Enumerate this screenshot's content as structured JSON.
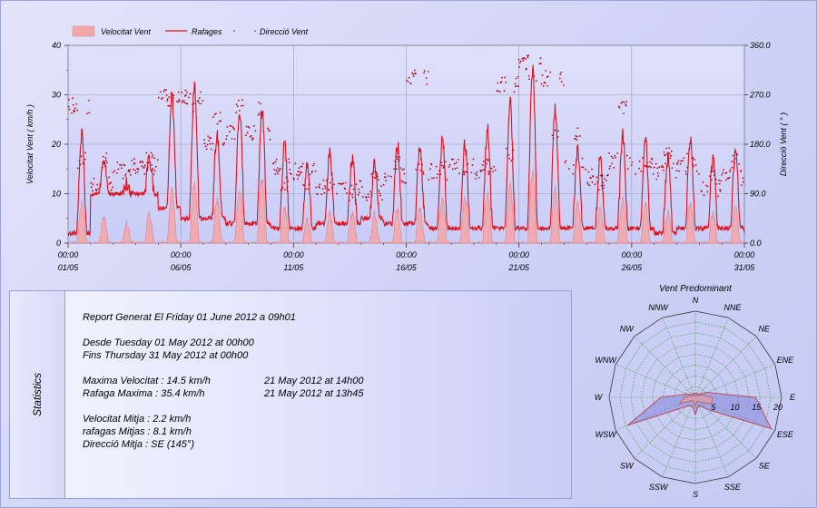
{
  "chart_data": [
    {
      "type": "line",
      "legend": {
        "placement": "top-left",
        "entries": [
          "Velocitat Vent",
          "Rafages",
          "Direcció Vent"
        ]
      },
      "series": [
        {
          "name": "Velocitat Vent",
          "kind": "area",
          "color": "#f0a7aa",
          "axis": "left"
        },
        {
          "name": "Rafages",
          "kind": "line",
          "color": "#e0101a",
          "axis": "left"
        },
        {
          "name": "Direcció Vent",
          "kind": "scatter",
          "color": "#c00010",
          "axis": "right"
        }
      ],
      "ylabel": "Velocitat Vent  ( km/h )",
      "y2label": "Direcció Vent  ( ° )",
      "ylim": [
        0,
        40
      ],
      "y2lim": [
        0,
        360
      ],
      "yticks": [
        "0",
        "10",
        "20",
        "30",
        "40"
      ],
      "y2ticks": [
        "0.0",
        "90.0",
        "180.0",
        "270.0",
        "360.0"
      ],
      "xlim": [
        "2012-05-01 00:00",
        "2012-05-31 00:00"
      ],
      "xticks": [
        {
          "time": "00:00",
          "date": "01/05"
        },
        {
          "time": "00:00",
          "date": "06/05"
        },
        {
          "time": "00:00",
          "date": "11/05"
        },
        {
          "time": "00:00",
          "date": "16/05"
        },
        {
          "time": "00:00",
          "date": "21/05"
        },
        {
          "time": "00:00",
          "date": "26/05"
        },
        {
          "time": "00:00",
          "date": "31/05"
        }
      ],
      "grid": true,
      "daily": [
        {
          "date": "2012-05-01",
          "base": 2,
          "peak_speed": 8,
          "peak_gust": 22,
          "dir_day": 150,
          "dir_night": 250
        },
        {
          "date": "2012-05-02",
          "base": 10,
          "peak_speed": 5,
          "peak_gust": 16,
          "dir_day": 150,
          "dir_night": 110
        },
        {
          "date": "2012-05-03",
          "base": 10,
          "peak_speed": 4,
          "peak_gust": 12,
          "dir_day": 130,
          "dir_night": 140
        },
        {
          "date": "2012-05-04",
          "base": 10,
          "peak_speed": 6,
          "peak_gust": 17,
          "dir_day": 150,
          "dir_night": 140
        },
        {
          "date": "2012-05-05",
          "base": 7,
          "peak_speed": 11,
          "peak_gust": 30,
          "dir_day": 260,
          "dir_night": 270
        },
        {
          "date": "2012-05-06",
          "base": 5,
          "peak_speed": 12,
          "peak_gust": 32,
          "dir_day": 250,
          "dir_night": 265
        },
        {
          "date": "2012-05-07",
          "base": 5,
          "peak_speed": 9,
          "peak_gust": 22,
          "dir_day": 230,
          "dir_night": 180
        },
        {
          "date": "2012-05-08",
          "base": 4,
          "peak_speed": 11,
          "peak_gust": 27,
          "dir_day": 250,
          "dir_night": 200
        },
        {
          "date": "2012-05-09",
          "base": 4,
          "peak_speed": 13,
          "peak_gust": 27,
          "dir_day": 245,
          "dir_night": 200
        },
        {
          "date": "2012-05-10",
          "base": 3,
          "peak_speed": 7,
          "peak_gust": 20,
          "dir_day": 110,
          "dir_night": 140
        },
        {
          "date": "2012-05-11",
          "base": 3,
          "peak_speed": 5,
          "peak_gust": 16,
          "dir_day": 110,
          "dir_night": 130
        },
        {
          "date": "2012-05-12",
          "base": 4,
          "peak_speed": 6,
          "peak_gust": 18,
          "dir_day": 110,
          "dir_night": 100
        },
        {
          "date": "2012-05-13",
          "base": 4,
          "peak_speed": 6,
          "peak_gust": 17,
          "dir_day": 90,
          "dir_night": 100
        },
        {
          "date": "2012-05-14",
          "base": 5,
          "peak_speed": 6,
          "peak_gust": 16,
          "dir_day": 120,
          "dir_night": 90
        },
        {
          "date": "2012-05-15",
          "base": 4,
          "peak_speed": 7,
          "peak_gust": 20,
          "dir_day": 150,
          "dir_night": 120
        },
        {
          "date": "2012-05-16",
          "base": 4,
          "peak_speed": 7,
          "peak_gust": 19,
          "dir_day": 140,
          "dir_night": 300
        },
        {
          "date": "2012-05-17",
          "base": 3,
          "peak_speed": 9,
          "peak_gust": 21,
          "dir_day": 140,
          "dir_night": 130
        },
        {
          "date": "2012-05-18",
          "base": 3,
          "peak_speed": 9,
          "peak_gust": 20,
          "dir_day": 130,
          "dir_night": 140
        },
        {
          "date": "2012-05-19",
          "base": 3,
          "peak_speed": 10,
          "peak_gust": 23,
          "dir_day": 140,
          "dir_night": 130
        },
        {
          "date": "2012-05-20",
          "base": 3,
          "peak_speed": 12,
          "peak_gust": 29,
          "dir_day": 160,
          "dir_night": 290
        },
        {
          "date": "2012-05-21",
          "base": 3,
          "peak_speed": 14.5,
          "peak_gust": 35.4,
          "dir_day": 300,
          "dir_night": 330
        },
        {
          "date": "2012-05-22",
          "base": 3,
          "peak_speed": 11,
          "peak_gust": 27,
          "dir_day": 200,
          "dir_night": 300
        },
        {
          "date": "2012-05-23",
          "base": 3,
          "peak_speed": 8,
          "peak_gust": 19,
          "dir_day": 200,
          "dir_night": 140
        },
        {
          "date": "2012-05-24",
          "base": 3,
          "peak_speed": 7,
          "peak_gust": 17,
          "dir_day": 110,
          "dir_night": 120
        },
        {
          "date": "2012-05-25",
          "base": 3,
          "peak_speed": 9,
          "peak_gust": 22,
          "dir_day": 250,
          "dir_night": 150
        },
        {
          "date": "2012-05-26",
          "base": 3,
          "peak_speed": 8,
          "peak_gust": 21,
          "dir_day": 150,
          "dir_night": 140
        },
        {
          "date": "2012-05-27",
          "base": 2,
          "peak_speed": 6,
          "peak_gust": 17,
          "dir_day": 160,
          "dir_night": 130
        },
        {
          "date": "2012-05-28",
          "base": 3,
          "peak_speed": 8,
          "peak_gust": 21,
          "dir_day": 150,
          "dir_night": 140
        },
        {
          "date": "2012-05-29",
          "base": 3,
          "peak_speed": 6,
          "peak_gust": 17,
          "dir_day": 120,
          "dir_night": 100
        },
        {
          "date": "2012-05-30",
          "base": 3,
          "peak_speed": 7,
          "peak_gust": 18,
          "dir_day": 150,
          "dir_night": 120
        }
      ]
    },
    {
      "type": "radar",
      "title": "Vent Predominant",
      "directions": [
        "N",
        "NNE",
        "NE",
        "ENE",
        "E",
        "ESE",
        "SE",
        "SSE",
        "S",
        "SSW",
        "SW",
        "WSW",
        "W",
        "WNW",
        "NW",
        "NNW"
      ],
      "radial_ticks": [
        "5",
        "10",
        "15",
        "20"
      ],
      "rmax": 20,
      "series": [
        {
          "name": "Rafages",
          "color": "#8f8fe0",
          "values": [
            1,
            1,
            1,
            3,
            14,
            19,
            4,
            2,
            4,
            2,
            3,
            17,
            8,
            2,
            1,
            1
          ]
        },
        {
          "name": "Velocitat Vent",
          "color": "#e8a0a0",
          "values": [
            0.5,
            0.5,
            0.5,
            1.5,
            4,
            4,
            1.5,
            1,
            2,
            1,
            1,
            4,
            2.5,
            1,
            0.5,
            0.5
          ]
        }
      ]
    }
  ],
  "stats": {
    "side_label": "Statistics",
    "report_line": "Report Generat El Friday 01 June 2012 a 09h01",
    "from_line": "Desde Tuesday 01 May 2012 at 00h00",
    "to_line": "Fins Thursday 31 May 2012 at 00h00",
    "max_speed": "Maxima Velocitat : 14.5 km/h",
    "max_speed_time": "21 May 2012 at 14h00",
    "max_gust": "Rafaga Maxima : 35.4 km/h",
    "max_gust_time": "21 May 2012 at 13h45",
    "avg_speed": "Velocitat Mitja : 2.2 km/h",
    "avg_gust": "rafagas Mitjas : 8.1 km/h",
    "avg_dir": "Direcció Mitja : SE (145°)"
  }
}
